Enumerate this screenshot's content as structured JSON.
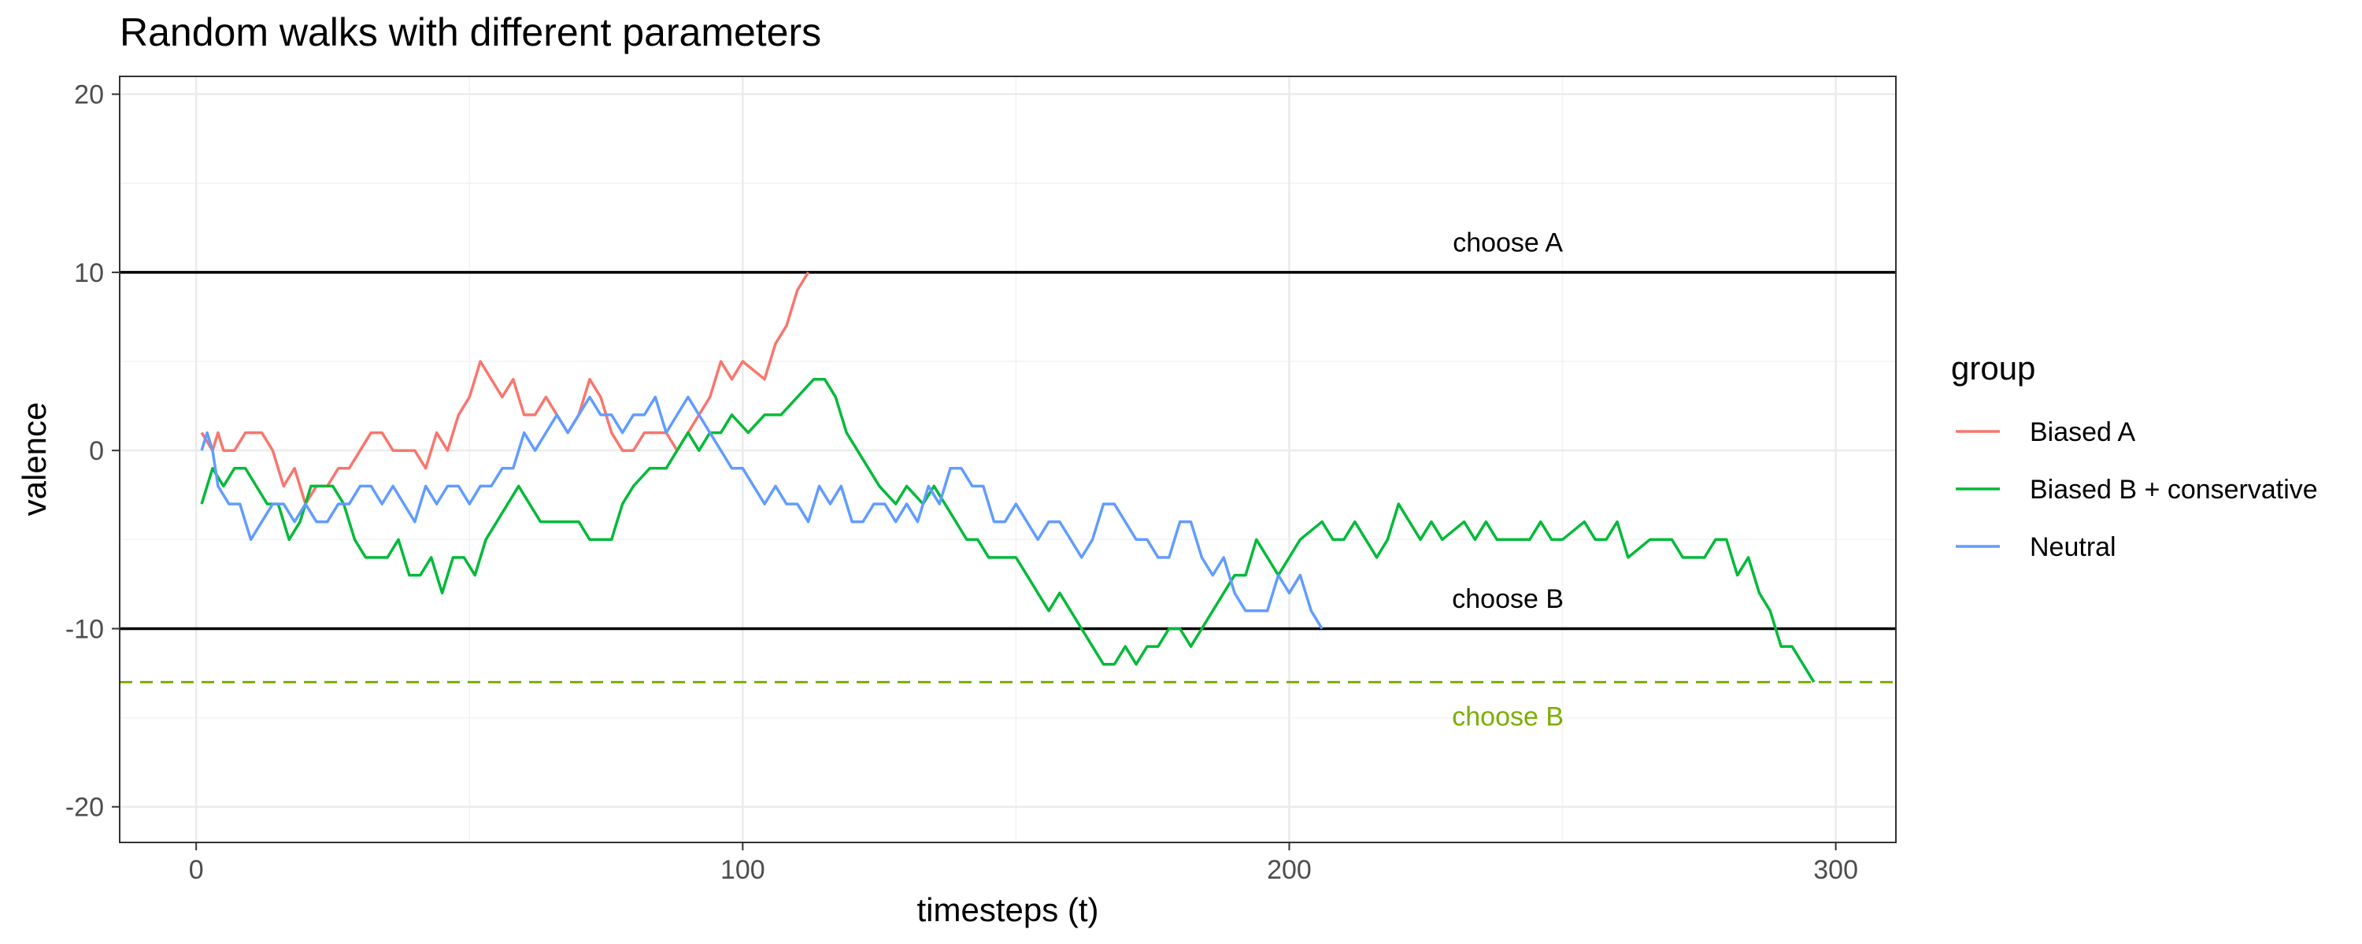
{
  "chart_data": {
    "type": "line",
    "title": "Random walks with different parameters",
    "xlabel": "timesteps (t)",
    "ylabel": "valence",
    "xlim": [
      -14,
      311
    ],
    "ylim": [
      -22,
      21
    ],
    "x_ticks": [
      0,
      100,
      200,
      300
    ],
    "y_ticks": [
      20,
      10,
      0,
      -10,
      -20
    ],
    "x_tick_labels": [
      "0",
      "100",
      "200",
      "300"
    ],
    "y_tick_labels": [
      "20",
      "10",
      "0",
      "-10",
      "-20"
    ],
    "grid": true,
    "legend": {
      "title": "group",
      "position": "right",
      "entries": [
        "Biased A",
        "Biased B + conservative",
        "Neutral"
      ]
    },
    "thresholds": [
      {
        "y": 10,
        "label": "choose A",
        "label_x": 240,
        "label_y": 11.7,
        "color": "#000000",
        "dashed": false
      },
      {
        "y": -10,
        "label": "choose B",
        "label_x": 240,
        "label_y": -8.3,
        "color": "#000000",
        "dashed": false
      },
      {
        "y": -13,
        "label": "choose B",
        "label_x": 240,
        "label_y": -14.9,
        "color": "#7CAE00",
        "dashed": true
      }
    ],
    "series": [
      {
        "name": "Biased A",
        "color": "#F8766D",
        "points": [
          [
            1,
            1
          ],
          [
            3,
            0
          ],
          [
            4,
            1
          ],
          [
            5,
            0
          ],
          [
            7,
            0
          ],
          [
            9,
            1
          ],
          [
            12,
            1
          ],
          [
            14,
            0
          ],
          [
            16,
            -2
          ],
          [
            18,
            -1
          ],
          [
            20,
            -3
          ],
          [
            22,
            -2
          ],
          [
            24,
            -2
          ],
          [
            26,
            -1
          ],
          [
            28,
            -1
          ],
          [
            30,
            0
          ],
          [
            32,
            1
          ],
          [
            34,
            1
          ],
          [
            36,
            0
          ],
          [
            40,
            0
          ],
          [
            42,
            -1
          ],
          [
            44,
            1
          ],
          [
            46,
            0
          ],
          [
            48,
            2
          ],
          [
            50,
            3
          ],
          [
            52,
            5
          ],
          [
            54,
            4
          ],
          [
            56,
            3
          ],
          [
            58,
            4
          ],
          [
            60,
            2
          ],
          [
            62,
            2
          ],
          [
            64,
            3
          ],
          [
            66,
            2
          ],
          [
            68,
            1
          ],
          [
            70,
            2
          ],
          [
            72,
            4
          ],
          [
            74,
            3
          ],
          [
            76,
            1
          ],
          [
            78,
            0
          ],
          [
            80,
            0
          ],
          [
            82,
            1
          ],
          [
            86,
            1
          ],
          [
            88,
            0
          ],
          [
            90,
            1
          ],
          [
            92,
            2
          ],
          [
            94,
            3
          ],
          [
            96,
            5
          ],
          [
            98,
            4
          ],
          [
            100,
            5
          ],
          [
            104,
            4
          ],
          [
            106,
            6
          ],
          [
            108,
            7
          ],
          [
            110,
            9
          ],
          [
            112,
            10
          ]
        ]
      },
      {
        "name": "Biased B + conservative",
        "color": "#00BA38",
        "points": [
          [
            1,
            -3
          ],
          [
            3,
            -1
          ],
          [
            5,
            -2
          ],
          [
            7,
            -1
          ],
          [
            9,
            -1
          ],
          [
            11,
            -2
          ],
          [
            13,
            -3
          ],
          [
            15,
            -3
          ],
          [
            17,
            -5
          ],
          [
            19,
            -4
          ],
          [
            21,
            -2
          ],
          [
            25,
            -2
          ],
          [
            27,
            -3
          ],
          [
            29,
            -5
          ],
          [
            31,
            -6
          ],
          [
            35,
            -6
          ],
          [
            37,
            -5
          ],
          [
            39,
            -7
          ],
          [
            41,
            -7
          ],
          [
            43,
            -6
          ],
          [
            45,
            -8
          ],
          [
            47,
            -6
          ],
          [
            49,
            -6
          ],
          [
            51,
            -7
          ],
          [
            53,
            -5
          ],
          [
            55,
            -4
          ],
          [
            57,
            -3
          ],
          [
            59,
            -2
          ],
          [
            61,
            -3
          ],
          [
            63,
            -4
          ],
          [
            70,
            -4
          ],
          [
            72,
            -5
          ],
          [
            76,
            -5
          ],
          [
            78,
            -3
          ],
          [
            80,
            -2
          ],
          [
            83,
            -1
          ],
          [
            86,
            -1
          ],
          [
            88,
            0
          ],
          [
            90,
            1
          ],
          [
            92,
            0
          ],
          [
            94,
            1
          ],
          [
            96,
            1
          ],
          [
            98,
            2
          ],
          [
            101,
            1
          ],
          [
            104,
            2
          ],
          [
            107,
            2
          ],
          [
            110,
            3
          ],
          [
            113,
            4
          ],
          [
            115,
            4
          ],
          [
            117,
            3
          ],
          [
            119,
            1
          ],
          [
            121,
            0
          ],
          [
            123,
            -1
          ],
          [
            125,
            -2
          ],
          [
            128,
            -3
          ],
          [
            130,
            -2
          ],
          [
            133,
            -3
          ],
          [
            135,
            -2
          ],
          [
            137,
            -3
          ],
          [
            139,
            -4
          ],
          [
            141,
            -5
          ],
          [
            143,
            -5
          ],
          [
            145,
            -6
          ],
          [
            150,
            -6
          ],
          [
            152,
            -7
          ],
          [
            154,
            -8
          ],
          [
            156,
            -9
          ],
          [
            158,
            -8
          ],
          [
            160,
            -9
          ],
          [
            162,
            -10
          ],
          [
            164,
            -11
          ],
          [
            166,
            -12
          ],
          [
            168,
            -12
          ],
          [
            170,
            -11
          ],
          [
            172,
            -12
          ],
          [
            174,
            -11
          ],
          [
            176,
            -11
          ],
          [
            178,
            -10
          ],
          [
            180,
            -10
          ],
          [
            182,
            -11
          ],
          [
            184,
            -10
          ],
          [
            186,
            -9
          ],
          [
            188,
            -8
          ],
          [
            190,
            -7
          ],
          [
            192,
            -7
          ],
          [
            194,
            -5
          ],
          [
            196,
            -6
          ],
          [
            198,
            -7
          ],
          [
            200,
            -6
          ],
          [
            202,
            -5
          ],
          [
            206,
            -4
          ],
          [
            208,
            -5
          ],
          [
            210,
            -5
          ],
          [
            212,
            -4
          ],
          [
            214,
            -5
          ],
          [
            216,
            -6
          ],
          [
            218,
            -5
          ],
          [
            220,
            -3
          ],
          [
            222,
            -4
          ],
          [
            224,
            -5
          ],
          [
            226,
            -4
          ],
          [
            228,
            -5
          ],
          [
            232,
            -4
          ],
          [
            234,
            -5
          ],
          [
            236,
            -4
          ],
          [
            238,
            -5
          ],
          [
            244,
            -5
          ],
          [
            246,
            -4
          ],
          [
            248,
            -5
          ],
          [
            250,
            -5
          ],
          [
            254,
            -4
          ],
          [
            256,
            -5
          ],
          [
            258,
            -5
          ],
          [
            260,
            -4
          ],
          [
            262,
            -6
          ],
          [
            266,
            -5
          ],
          [
            270,
            -5
          ],
          [
            272,
            -6
          ],
          [
            276,
            -6
          ],
          [
            278,
            -5
          ],
          [
            280,
            -5
          ],
          [
            282,
            -7
          ],
          [
            284,
            -6
          ],
          [
            286,
            -8
          ],
          [
            288,
            -9
          ],
          [
            290,
            -11
          ],
          [
            292,
            -11
          ],
          [
            294,
            -12
          ],
          [
            296,
            -13
          ]
        ]
      },
      {
        "name": "Neutral",
        "color": "#619CFF",
        "points": [
          [
            1,
            0
          ],
          [
            2,
            1
          ],
          [
            3,
            0
          ],
          [
            4,
            -2
          ],
          [
            6,
            -3
          ],
          [
            8,
            -3
          ],
          [
            10,
            -5
          ],
          [
            12,
            -4
          ],
          [
            14,
            -3
          ],
          [
            16,
            -3
          ],
          [
            18,
            -4
          ],
          [
            20,
            -3
          ],
          [
            22,
            -4
          ],
          [
            24,
            -4
          ],
          [
            26,
            -3
          ],
          [
            28,
            -3
          ],
          [
            30,
            -2
          ],
          [
            32,
            -2
          ],
          [
            34,
            -3
          ],
          [
            36,
            -2
          ],
          [
            38,
            -3
          ],
          [
            40,
            -4
          ],
          [
            42,
            -2
          ],
          [
            44,
            -3
          ],
          [
            46,
            -2
          ],
          [
            48,
            -2
          ],
          [
            50,
            -3
          ],
          [
            52,
            -2
          ],
          [
            54,
            -2
          ],
          [
            56,
            -1
          ],
          [
            58,
            -1
          ],
          [
            60,
            1
          ],
          [
            62,
            0
          ],
          [
            64,
            1
          ],
          [
            66,
            2
          ],
          [
            68,
            1
          ],
          [
            70,
            2
          ],
          [
            72,
            3
          ],
          [
            74,
            2
          ],
          [
            76,
            2
          ],
          [
            78,
            1
          ],
          [
            80,
            2
          ],
          [
            82,
            2
          ],
          [
            84,
            3
          ],
          [
            86,
            1
          ],
          [
            88,
            2
          ],
          [
            90,
            3
          ],
          [
            92,
            2
          ],
          [
            94,
            1
          ],
          [
            96,
            0
          ],
          [
            98,
            -1
          ],
          [
            100,
            -1
          ],
          [
            102,
            -2
          ],
          [
            104,
            -3
          ],
          [
            106,
            -2
          ],
          [
            108,
            -3
          ],
          [
            110,
            -3
          ],
          [
            112,
            -4
          ],
          [
            114,
            -2
          ],
          [
            116,
            -3
          ],
          [
            118,
            -2
          ],
          [
            120,
            -4
          ],
          [
            122,
            -4
          ],
          [
            124,
            -3
          ],
          [
            126,
            -3
          ],
          [
            128,
            -4
          ],
          [
            130,
            -3
          ],
          [
            132,
            -4
          ],
          [
            134,
            -2
          ],
          [
            136,
            -3
          ],
          [
            138,
            -1
          ],
          [
            140,
            -1
          ],
          [
            142,
            -2
          ],
          [
            144,
            -2
          ],
          [
            146,
            -4
          ],
          [
            148,
            -4
          ],
          [
            150,
            -3
          ],
          [
            152,
            -4
          ],
          [
            154,
            -5
          ],
          [
            156,
            -4
          ],
          [
            158,
            -4
          ],
          [
            160,
            -5
          ],
          [
            162,
            -6
          ],
          [
            164,
            -5
          ],
          [
            166,
            -3
          ],
          [
            168,
            -3
          ],
          [
            170,
            -4
          ],
          [
            172,
            -5
          ],
          [
            174,
            -5
          ],
          [
            176,
            -6
          ],
          [
            178,
            -6
          ],
          [
            180,
            -4
          ],
          [
            182,
            -4
          ],
          [
            184,
            -6
          ],
          [
            186,
            -7
          ],
          [
            188,
            -6
          ],
          [
            190,
            -8
          ],
          [
            192,
            -9
          ],
          [
            196,
            -9
          ],
          [
            198,
            -7
          ],
          [
            200,
            -8
          ],
          [
            202,
            -7
          ],
          [
            204,
            -9
          ],
          [
            206,
            -10
          ]
        ]
      }
    ]
  }
}
